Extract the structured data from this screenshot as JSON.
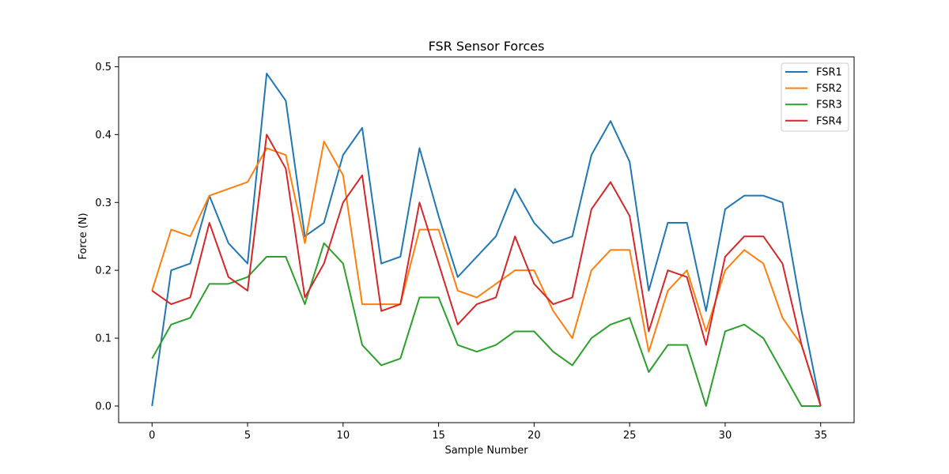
{
  "chart_data": {
    "type": "line",
    "title": "FSR Sensor Forces",
    "xlabel": "Sample Number",
    "ylabel": "Force (N)",
    "xlim": [
      -1.75,
      36.75
    ],
    "ylim": [
      -0.0245,
      0.5145
    ],
    "xticks": [
      0,
      5,
      10,
      15,
      20,
      25,
      30,
      35
    ],
    "yticks": [
      0.0,
      0.1,
      0.2,
      0.3,
      0.4,
      0.5
    ],
    "ytick_labels": [
      "0.0",
      "0.1",
      "0.2",
      "0.3",
      "0.4",
      "0.5"
    ],
    "grid": false,
    "legend_position": "top-right",
    "x": [
      0,
      1,
      2,
      3,
      4,
      5,
      6,
      7,
      8,
      9,
      10,
      11,
      12,
      13,
      14,
      15,
      16,
      17,
      18,
      19,
      20,
      21,
      22,
      23,
      24,
      25,
      26,
      27,
      28,
      29,
      30,
      31,
      32,
      33,
      34,
      35
    ],
    "series": [
      {
        "name": "FSR1",
        "color": "#1f77b4",
        "values": [
          0.0,
          0.2,
          0.21,
          0.31,
          0.24,
          0.21,
          0.49,
          0.45,
          0.25,
          0.27,
          0.37,
          0.41,
          0.21,
          0.22,
          0.38,
          0.28,
          0.19,
          0.22,
          0.25,
          0.32,
          0.27,
          0.24,
          0.25,
          0.37,
          0.42,
          0.36,
          0.17,
          0.27,
          0.27,
          0.14,
          0.29,
          0.31,
          0.31,
          0.3,
          0.14,
          0.0
        ]
      },
      {
        "name": "FSR2",
        "color": "#ff7f0e",
        "values": [
          0.17,
          0.26,
          0.25,
          0.31,
          0.32,
          0.33,
          0.38,
          0.37,
          0.24,
          0.39,
          0.34,
          0.15,
          0.15,
          0.15,
          0.26,
          0.26,
          0.17,
          0.16,
          0.18,
          0.2,
          0.2,
          0.14,
          0.1,
          0.2,
          0.23,
          0.23,
          0.08,
          0.17,
          0.2,
          0.11,
          0.2,
          0.23,
          0.21,
          0.13,
          0.09,
          0.0
        ]
      },
      {
        "name": "FSR3",
        "color": "#2ca02c",
        "values": [
          0.07,
          0.12,
          0.13,
          0.18,
          0.18,
          0.19,
          0.22,
          0.22,
          0.15,
          0.24,
          0.21,
          0.09,
          0.06,
          0.07,
          0.16,
          0.16,
          0.09,
          0.08,
          0.09,
          0.11,
          0.11,
          0.08,
          0.06,
          0.1,
          0.12,
          0.13,
          0.05,
          0.09,
          0.09,
          0.0,
          0.11,
          0.12,
          0.1,
          0.05,
          0.0,
          0.0
        ]
      },
      {
        "name": "FSR4",
        "color": "#d62728",
        "values": [
          0.17,
          0.15,
          0.16,
          0.27,
          0.19,
          0.17,
          0.4,
          0.35,
          0.16,
          0.21,
          0.3,
          0.34,
          0.14,
          0.15,
          0.3,
          0.21,
          0.12,
          0.15,
          0.16,
          0.25,
          0.18,
          0.15,
          0.16,
          0.29,
          0.33,
          0.28,
          0.11,
          0.2,
          0.19,
          0.09,
          0.22,
          0.25,
          0.25,
          0.21,
          0.09,
          0.0
        ]
      }
    ]
  }
}
